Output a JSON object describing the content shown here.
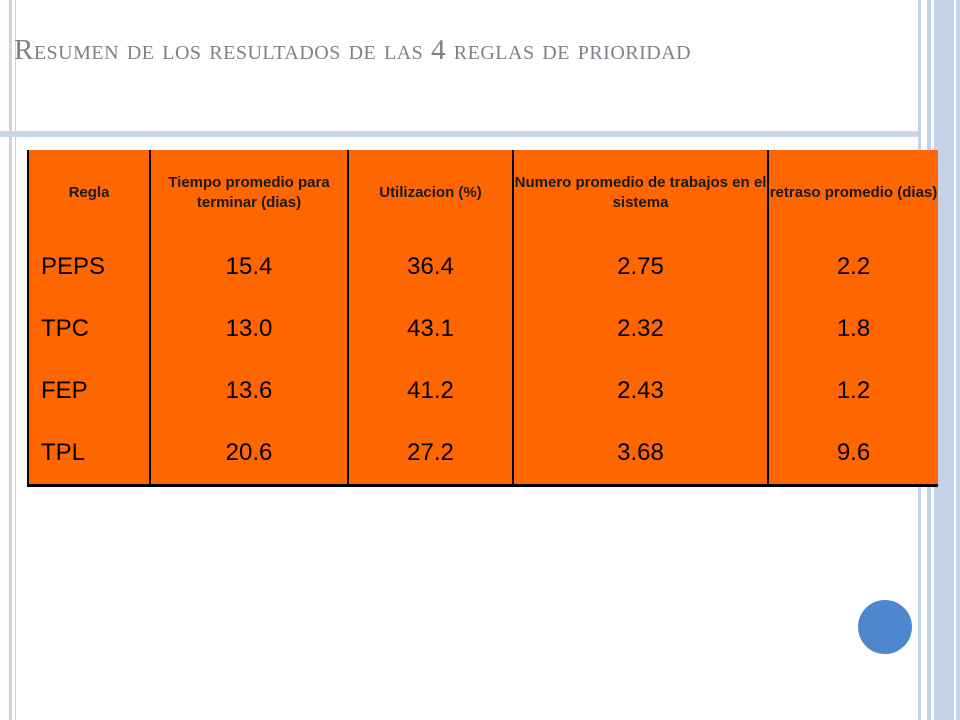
{
  "slide": {
    "title": "Resumen de los resultados de las 4 reglas de prioridad"
  },
  "table": {
    "headers": [
      "Regla",
      "Tiempo promedio para terminar (dias)",
      "Utilizacion (%)",
      "Numero promedio de trabajos en el sistema",
      "retraso promedio (dias)"
    ],
    "rows": [
      [
        "PEPS",
        "15.4",
        "36.4",
        "2.75",
        "2.2"
      ],
      [
        "TPC",
        "13.0",
        "43.1",
        "2.32",
        "1.8"
      ],
      [
        "FEP",
        "13.6",
        "41.2",
        "2.43",
        "1.2"
      ],
      [
        "TPL",
        "20.6",
        "27.2",
        "3.68",
        "9.6"
      ]
    ]
  },
  "colors": {
    "table_fill": "#ff6600",
    "frame": "#c4d3ea",
    "title_text": "#7f8088",
    "circle": "#4f87cf"
  }
}
